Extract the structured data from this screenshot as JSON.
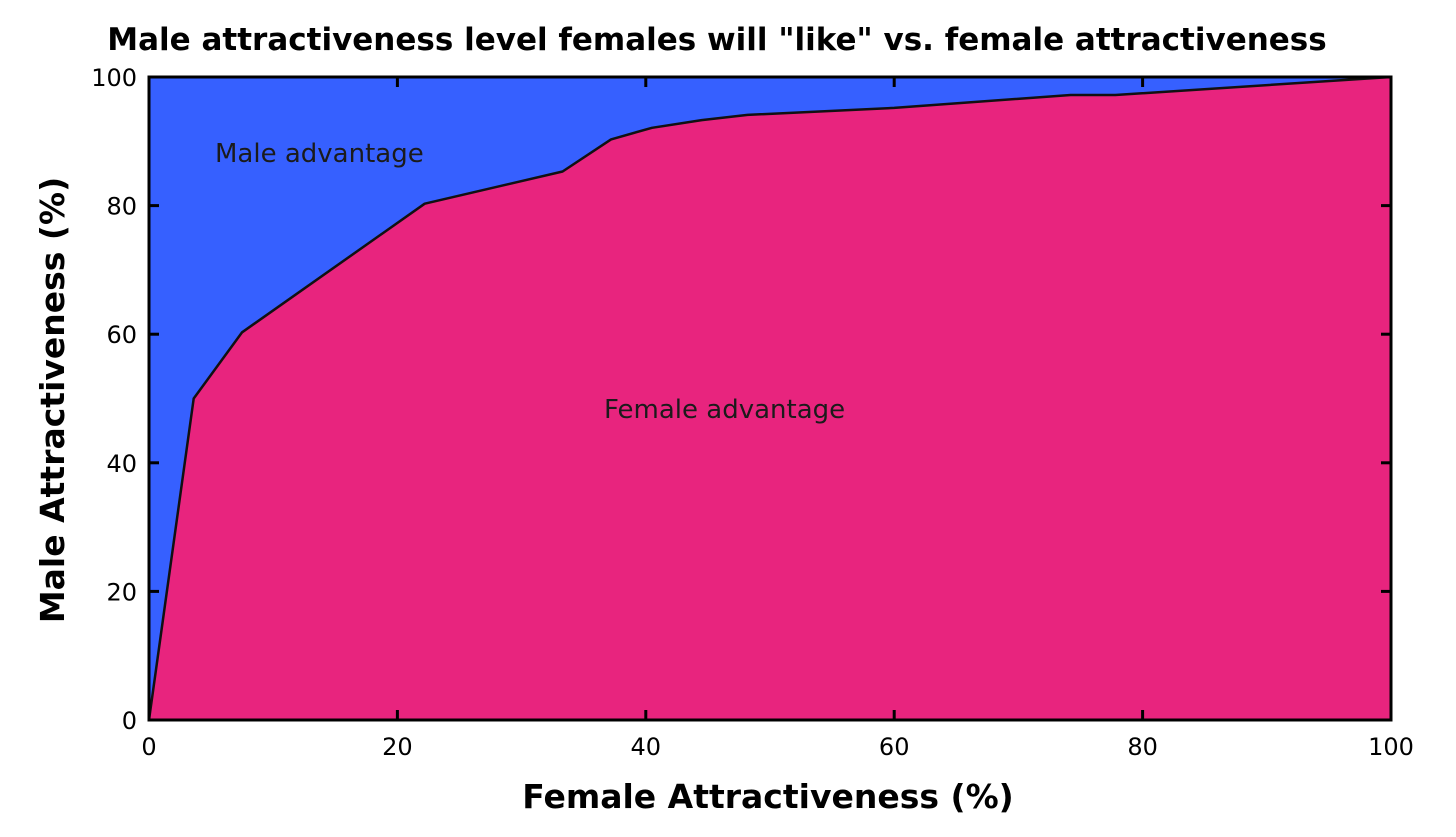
{
  "chart_data": {
    "type": "area",
    "title": "Male attractiveness level females will \"like\" vs. female attractiveness",
    "xlabel": "Female Attractiveness (%)",
    "ylabel": "Male Attractiveness (%)",
    "xlim": [
      0,
      100
    ],
    "ylim": [
      0,
      100
    ],
    "x_ticks": [
      "0",
      "20",
      "40",
      "60",
      "80",
      "100"
    ],
    "y_ticks": [
      "0",
      "20",
      "40",
      "60",
      "80",
      "100"
    ],
    "grid": false,
    "series": [
      {
        "name": "",
        "x": [
          0,
          3.6,
          7.5,
          22.2,
          33.3,
          37.2,
          40.5,
          44.5,
          48.2,
          60,
          74.2,
          77.8,
          100
        ],
        "y": [
          0,
          50,
          60.3,
          80.3,
          85.3,
          90.3,
          92.1,
          93.3,
          94.1,
          95.2,
          97.2,
          97.2,
          100
        ]
      }
    ],
    "region_labels": {
      "above": "Male advantage",
      "below": "Female advantage"
    },
    "colors": {
      "above": "#3660ff",
      "below": "#e8247e",
      "line": "#111111"
    }
  }
}
